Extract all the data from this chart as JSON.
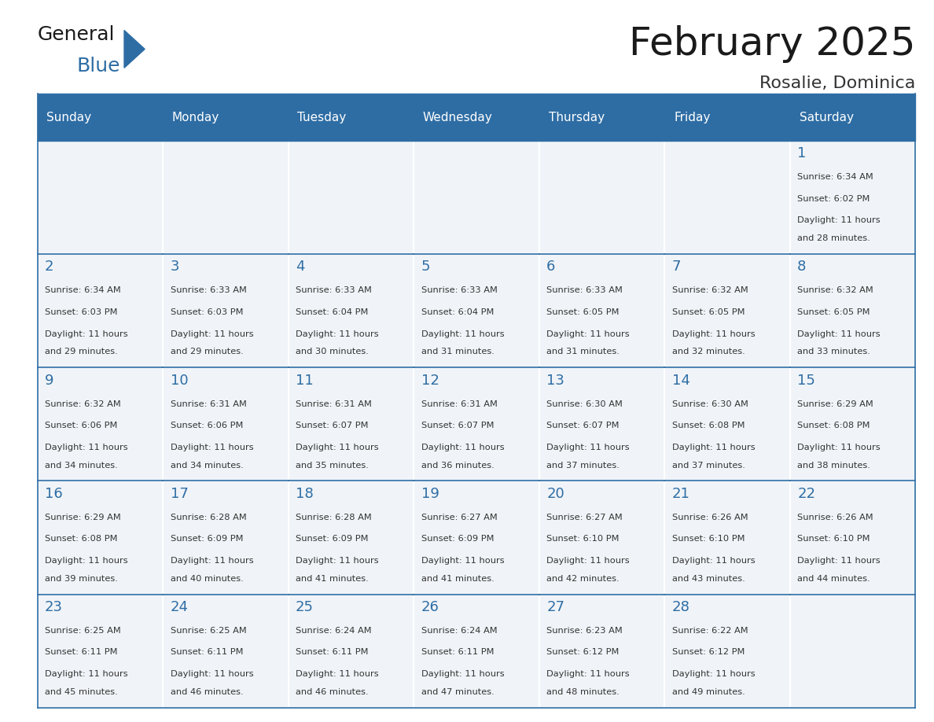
{
  "title": "February 2025",
  "subtitle": "Rosalie, Dominica",
  "days_of_week": [
    "Sunday",
    "Monday",
    "Tuesday",
    "Wednesday",
    "Thursday",
    "Friday",
    "Saturday"
  ],
  "header_bg": "#2E6DA4",
  "header_text": "#FFFFFF",
  "cell_bg_light": "#F0F4F8",
  "cell_bg_white": "#FFFFFF",
  "line_color": "#2E6DA4",
  "day_num_color": "#2E6DA4",
  "cell_text_color": "#333333",
  "title_color": "#1a1a1a",
  "subtitle_color": "#333333",
  "logo_general_color": "#1a1a1a",
  "logo_blue_color": "#2E6DA4",
  "weeks": [
    [
      {
        "day": null,
        "sunrise": null,
        "sunset": null,
        "daylight": null
      },
      {
        "day": null,
        "sunrise": null,
        "sunset": null,
        "daylight": null
      },
      {
        "day": null,
        "sunrise": null,
        "sunset": null,
        "daylight": null
      },
      {
        "day": null,
        "sunrise": null,
        "sunset": null,
        "daylight": null
      },
      {
        "day": null,
        "sunrise": null,
        "sunset": null,
        "daylight": null
      },
      {
        "day": null,
        "sunrise": null,
        "sunset": null,
        "daylight": null
      },
      {
        "day": 1,
        "sunrise": "6:34 AM",
        "sunset": "6:02 PM",
        "daylight": "11 hours and 28 minutes."
      }
    ],
    [
      {
        "day": 2,
        "sunrise": "6:34 AM",
        "sunset": "6:03 PM",
        "daylight": "11 hours and 29 minutes."
      },
      {
        "day": 3,
        "sunrise": "6:33 AM",
        "sunset": "6:03 PM",
        "daylight": "11 hours and 29 minutes."
      },
      {
        "day": 4,
        "sunrise": "6:33 AM",
        "sunset": "6:04 PM",
        "daylight": "11 hours and 30 minutes."
      },
      {
        "day": 5,
        "sunrise": "6:33 AM",
        "sunset": "6:04 PM",
        "daylight": "11 hours and 31 minutes."
      },
      {
        "day": 6,
        "sunrise": "6:33 AM",
        "sunset": "6:05 PM",
        "daylight": "11 hours and 31 minutes."
      },
      {
        "day": 7,
        "sunrise": "6:32 AM",
        "sunset": "6:05 PM",
        "daylight": "11 hours and 32 minutes."
      },
      {
        "day": 8,
        "sunrise": "6:32 AM",
        "sunset": "6:05 PM",
        "daylight": "11 hours and 33 minutes."
      }
    ],
    [
      {
        "day": 9,
        "sunrise": "6:32 AM",
        "sunset": "6:06 PM",
        "daylight": "11 hours and 34 minutes."
      },
      {
        "day": 10,
        "sunrise": "6:31 AM",
        "sunset": "6:06 PM",
        "daylight": "11 hours and 34 minutes."
      },
      {
        "day": 11,
        "sunrise": "6:31 AM",
        "sunset": "6:07 PM",
        "daylight": "11 hours and 35 minutes."
      },
      {
        "day": 12,
        "sunrise": "6:31 AM",
        "sunset": "6:07 PM",
        "daylight": "11 hours and 36 minutes."
      },
      {
        "day": 13,
        "sunrise": "6:30 AM",
        "sunset": "6:07 PM",
        "daylight": "11 hours and 37 minutes."
      },
      {
        "day": 14,
        "sunrise": "6:30 AM",
        "sunset": "6:08 PM",
        "daylight": "11 hours and 37 minutes."
      },
      {
        "day": 15,
        "sunrise": "6:29 AM",
        "sunset": "6:08 PM",
        "daylight": "11 hours and 38 minutes."
      }
    ],
    [
      {
        "day": 16,
        "sunrise": "6:29 AM",
        "sunset": "6:08 PM",
        "daylight": "11 hours and 39 minutes."
      },
      {
        "day": 17,
        "sunrise": "6:28 AM",
        "sunset": "6:09 PM",
        "daylight": "11 hours and 40 minutes."
      },
      {
        "day": 18,
        "sunrise": "6:28 AM",
        "sunset": "6:09 PM",
        "daylight": "11 hours and 41 minutes."
      },
      {
        "day": 19,
        "sunrise": "6:27 AM",
        "sunset": "6:09 PM",
        "daylight": "11 hours and 41 minutes."
      },
      {
        "day": 20,
        "sunrise": "6:27 AM",
        "sunset": "6:10 PM",
        "daylight": "11 hours and 42 minutes."
      },
      {
        "day": 21,
        "sunrise": "6:26 AM",
        "sunset": "6:10 PM",
        "daylight": "11 hours and 43 minutes."
      },
      {
        "day": 22,
        "sunrise": "6:26 AM",
        "sunset": "6:10 PM",
        "daylight": "11 hours and 44 minutes."
      }
    ],
    [
      {
        "day": 23,
        "sunrise": "6:25 AM",
        "sunset": "6:11 PM",
        "daylight": "11 hours and 45 minutes."
      },
      {
        "day": 24,
        "sunrise": "6:25 AM",
        "sunset": "6:11 PM",
        "daylight": "11 hours and 46 minutes."
      },
      {
        "day": 25,
        "sunrise": "6:24 AM",
        "sunset": "6:11 PM",
        "daylight": "11 hours and 46 minutes."
      },
      {
        "day": 26,
        "sunrise": "6:24 AM",
        "sunset": "6:11 PM",
        "daylight": "11 hours and 47 minutes."
      },
      {
        "day": 27,
        "sunrise": "6:23 AM",
        "sunset": "6:12 PM",
        "daylight": "11 hours and 48 minutes."
      },
      {
        "day": 28,
        "sunrise": "6:22 AM",
        "sunset": "6:12 PM",
        "daylight": "11 hours and 49 minutes."
      },
      {
        "day": null,
        "sunrise": null,
        "sunset": null,
        "daylight": null
      }
    ]
  ]
}
